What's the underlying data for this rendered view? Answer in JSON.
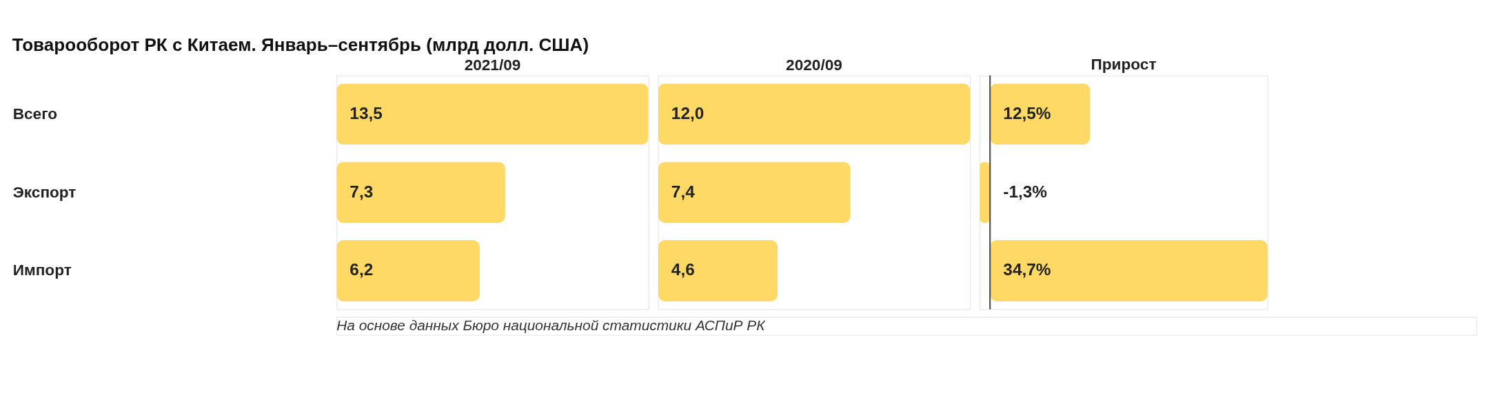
{
  "chart_data": [
    {
      "type": "bar",
      "orientation": "horizontal",
      "title": "Товарооборот РК с Китаем. Январь–сентябрь (млрд долл. США)",
      "subtitle": "2021/09",
      "categories": [
        "Всего",
        "Экспорт",
        "Импорт"
      ],
      "values": [
        13.5,
        7.3,
        6.2
      ],
      "value_labels": [
        "13,5",
        "7,3",
        "6,2"
      ],
      "color": "#ffd966",
      "tick_labels": "y",
      "annotations": [
        "На основе данных Бюро национальной статистики АСПиР РК"
      ]
    },
    {
      "type": "bar",
      "orientation": "horizontal",
      "subtitle": "2020/09",
      "categories": [
        null,
        null,
        null
      ],
      "values": [
        12.0,
        7.4,
        4.6
      ],
      "value_labels": [
        "12,0",
        "7,4",
        "4,6"
      ],
      "color": "#ffd966",
      "tick_labels": false
    },
    {
      "type": "bar",
      "orientation": "horizontal",
      "subtitle": "Прирост",
      "categories": [
        null,
        null,
        null
      ],
      "values": [
        12.5,
        -1.3,
        34.7
      ],
      "value_labels": [
        "12,5%",
        "-1,3%",
        "34,7%"
      ],
      "color": "#ffd966",
      "tick_labels": false
    }
  ]
}
